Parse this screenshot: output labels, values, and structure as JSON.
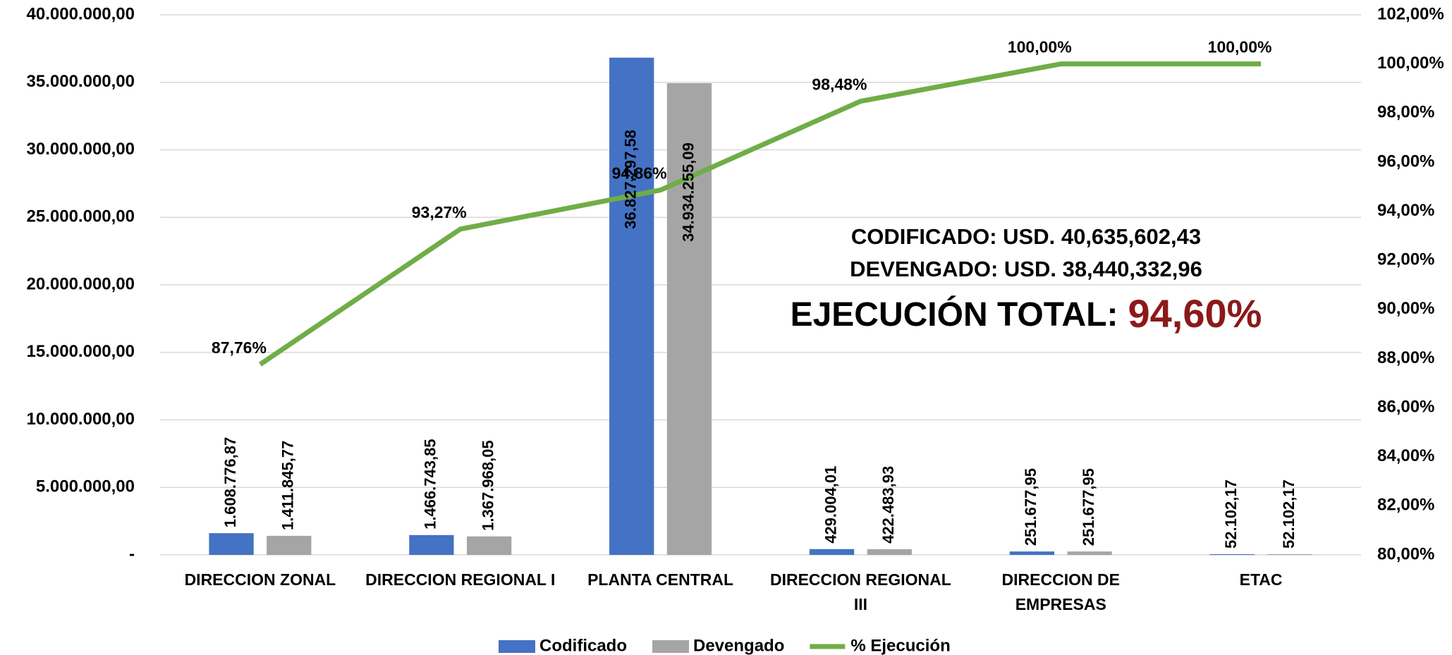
{
  "chart_data": {
    "type": "bar",
    "categories": [
      "DIRECCION ZONAL",
      "DIRECCION REGIONAL I",
      "PLANTA CENTRAL",
      "DIRECCION REGIONAL III",
      "DIRECCION DE EMPRESAS",
      "ETAC"
    ],
    "series": [
      {
        "name": "Codificado",
        "color": "#4472c4",
        "type": "bar",
        "values": [
          1608776.87,
          1466743.85,
          36827297.58,
          429004.01,
          251677.95,
          52102.17
        ],
        "value_labels": [
          "1.608.776,87",
          "1.466.743,85",
          "36.827.297,58",
          "429.004,01",
          "251.677,95",
          "52.102,17"
        ]
      },
      {
        "name": "Devengado",
        "color": "#a5a5a5",
        "type": "bar",
        "values": [
          1411845.77,
          1367968.05,
          34934255.09,
          422483.93,
          251677.95,
          52102.17
        ],
        "value_labels": [
          "1.411.845,77",
          "1.367.968,05",
          "34.934.255,09",
          "422.483,93",
          "251.677,95",
          "52.102,17"
        ]
      },
      {
        "name": "% Ejecución",
        "color": "#70ad47",
        "type": "line",
        "axis": "y2",
        "values": [
          87.76,
          93.27,
          94.86,
          98.48,
          100,
          100
        ],
        "value_labels": [
          "87,76%",
          "93,27%",
          "94,86%",
          "98,48%",
          "100,00%",
          "100,00%"
        ]
      }
    ],
    "ylim": [
      0,
      40000000
    ],
    "yticks": [
      {
        "value": 0,
        "label": "-"
      },
      {
        "value": 5000000,
        "label": "5.000.000,00"
      },
      {
        "value": 10000000,
        "label": "10.000.000,00"
      },
      {
        "value": 15000000,
        "label": "15.000.000,00"
      },
      {
        "value": 20000000,
        "label": "20.000.000,00"
      },
      {
        "value": 25000000,
        "label": "25.000.000,00"
      },
      {
        "value": 30000000,
        "label": "30.000.000,00"
      },
      {
        "value": 35000000,
        "label": "35.000.000,00"
      },
      {
        "value": 40000000,
        "label": "40.000.000,00"
      }
    ],
    "y2lim": [
      80,
      102
    ],
    "y2ticks": [
      {
        "value": 80,
        "label": "80,00%"
      },
      {
        "value": 82,
        "label": "82,00%"
      },
      {
        "value": 84,
        "label": "84,00%"
      },
      {
        "value": 86,
        "label": "86,00%"
      },
      {
        "value": 88,
        "label": "88,00%"
      },
      {
        "value": 90,
        "label": "90,00%"
      },
      {
        "value": 92,
        "label": "92,00%"
      },
      {
        "value": 94,
        "label": "94,00%"
      },
      {
        "value": 96,
        "label": "96,00%"
      },
      {
        "value": 98,
        "label": "98,00%"
      },
      {
        "value": 100,
        "label": "100,00%"
      },
      {
        "value": 102,
        "label": "102,00%"
      }
    ],
    "grid": true,
    "legend": "bottom",
    "annotations": {
      "codificado": "CODIFICADO: USD. 40,635,602,43",
      "devengado": "DEVENGADO: USD. 38,440,332,96",
      "total_label": "EJECUCIÓN TOTAL:",
      "total_value": "94,60%",
      "total_value_color": "#8b1a1a"
    }
  }
}
